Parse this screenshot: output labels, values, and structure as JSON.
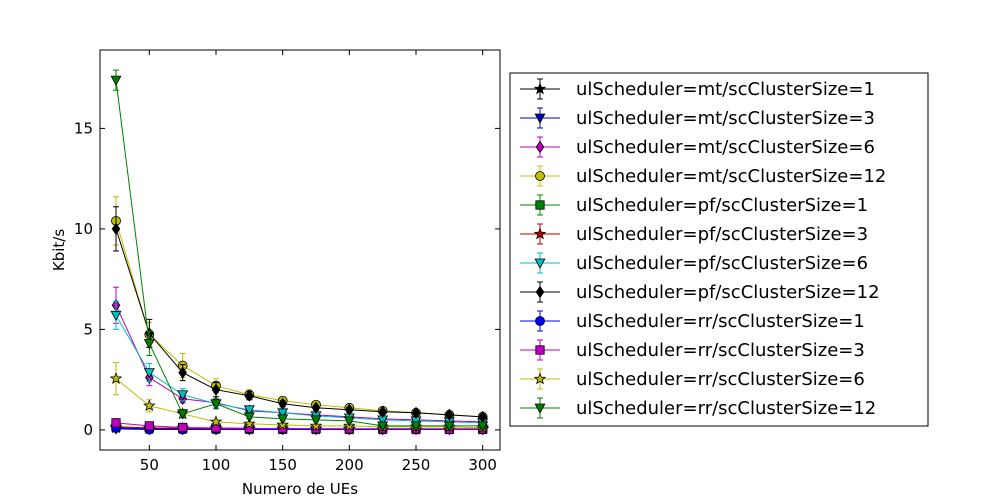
{
  "chart_data": {
    "type": "line",
    "xlabel": "Numero de UEs",
    "ylabel": "Kbit/s",
    "xlim": [
      13,
      313
    ],
    "ylim": [
      -1,
      18.9
    ],
    "x_ticks": [
      50,
      100,
      150,
      200,
      250,
      300
    ],
    "y_ticks": [
      0,
      5,
      10,
      15
    ],
    "grid": false,
    "legend_position": "outside-right",
    "x": [
      25,
      50,
      75,
      100,
      125,
      150,
      175,
      200,
      225,
      250,
      275,
      300
    ],
    "series": [
      {
        "name": "ulScheduler=mt/scClusterSize=1",
        "color": "#000000",
        "marker": "star",
        "values": [
          0.1,
          0.05,
          0.05,
          0.05,
          0.04,
          0.04,
          0.04,
          0.03,
          0.03,
          0.03,
          0.03,
          0.03
        ],
        "errors": [
          0.05,
          0.03,
          0.02,
          0.02,
          0.02,
          0.02,
          0.02,
          0.02,
          0.02,
          0.02,
          0.02,
          0.02
        ]
      },
      {
        "name": "ulScheduler=mt/scClusterSize=3",
        "color": "#0000bf",
        "marker": "triangle-down",
        "values": [
          0.05,
          0.02,
          0.02,
          0.02,
          0.02,
          0.02,
          0.02,
          0.02,
          0.02,
          0.02,
          0.02,
          0.02
        ],
        "errors": [
          0.03,
          0.02,
          0.02,
          0.02,
          0.02,
          0.02,
          0.02,
          0.02,
          0.02,
          0.02,
          0.02,
          0.02
        ]
      },
      {
        "name": "ulScheduler=mt/scClusterSize=6",
        "color": "#bf00bf",
        "marker": "diamond",
        "values": [
          6.2,
          2.6,
          1.55,
          1.35,
          0.95,
          0.85,
          0.75,
          0.65,
          0.55,
          0.5,
          0.45,
          0.4
        ],
        "errors": [
          0.9,
          0.4,
          0.2,
          0.15,
          0.1,
          0.1,
          0.1,
          0.08,
          0.08,
          0.08,
          0.08,
          0.08
        ]
      },
      {
        "name": "ulScheduler=mt/scClusterSize=12",
        "color": "#bfbf00",
        "marker": "circle",
        "values": [
          10.4,
          4.75,
          3.2,
          2.2,
          1.75,
          1.45,
          1.25,
          1.1,
          0.95,
          0.85,
          0.75,
          0.65
        ],
        "errors": [
          1.2,
          0.6,
          0.6,
          0.35,
          0.25,
          0.2,
          0.15,
          0.15,
          0.15,
          0.12,
          0.12,
          0.12
        ]
      },
      {
        "name": "ulScheduler=pf/scClusterSize=1",
        "color": "#008000",
        "marker": "square",
        "values": [
          0.15,
          0.1,
          0.08,
          0.07,
          0.06,
          0.05,
          0.05,
          0.05,
          0.05,
          0.05,
          0.05,
          0.05
        ],
        "errors": [
          0.05,
          0.03,
          0.02,
          0.02,
          0.02,
          0.02,
          0.02,
          0.02,
          0.02,
          0.02,
          0.02,
          0.02
        ]
      },
      {
        "name": "ulScheduler=pf/scClusterSize=3",
        "color": "#bf0000",
        "marker": "star",
        "values": [
          0.15,
          0.1,
          0.08,
          0.07,
          0.06,
          0.05,
          0.05,
          0.05,
          0.05,
          0.05,
          0.05,
          0.05
        ],
        "errors": [
          0.05,
          0.03,
          0.02,
          0.02,
          0.02,
          0.02,
          0.02,
          0.02,
          0.02,
          0.02,
          0.02,
          0.02
        ]
      },
      {
        "name": "ulScheduler=pf/scClusterSize=6",
        "color": "#00bfbf",
        "marker": "triangle-down",
        "values": [
          5.7,
          2.85,
          1.75,
          1.3,
          1.0,
          0.85,
          0.7,
          0.6,
          0.5,
          0.45,
          0.4,
          0.35
        ],
        "errors": [
          0.7,
          0.45,
          0.3,
          0.2,
          0.12,
          0.1,
          0.1,
          0.08,
          0.08,
          0.08,
          0.08,
          0.08
        ]
      },
      {
        "name": "ulScheduler=pf/scClusterSize=12",
        "color": "#000000",
        "marker": "diamond",
        "values": [
          10.0,
          4.8,
          2.85,
          2.0,
          1.7,
          1.3,
          1.1,
          1.0,
          0.9,
          0.85,
          0.75,
          0.65
        ],
        "errors": [
          1.1,
          0.7,
          0.4,
          0.35,
          0.2,
          0.15,
          0.12,
          0.12,
          0.1,
          0.1,
          0.1,
          0.1
        ]
      },
      {
        "name": "ulScheduler=rr/scClusterSize=1",
        "color": "#0000ff",
        "marker": "circle",
        "values": [
          0.1,
          0.02,
          0.02,
          0.02,
          0.02,
          0.02,
          0.02,
          0.02,
          0.02,
          0.02,
          0.02,
          0.02
        ],
        "errors": [
          0.05,
          0.02,
          0.02,
          0.02,
          0.02,
          0.02,
          0.02,
          0.02,
          0.02,
          0.02,
          0.02,
          0.02
        ]
      },
      {
        "name": "ulScheduler=rr/scClusterSize=3",
        "color": "#bf00bf",
        "marker": "square",
        "values": [
          0.35,
          0.2,
          0.12,
          0.1,
          0.08,
          0.07,
          0.06,
          0.05,
          0.05,
          0.05,
          0.04,
          0.04
        ],
        "errors": [
          0.2,
          0.08,
          0.05,
          0.04,
          0.03,
          0.03,
          0.03,
          0.03,
          0.03,
          0.03,
          0.03,
          0.03
        ]
      },
      {
        "name": "ulScheduler=rr/scClusterSize=6",
        "color": "#bfbf00",
        "marker": "star",
        "values": [
          2.55,
          1.2,
          0.8,
          0.4,
          0.3,
          0.25,
          0.2,
          0.2,
          0.15,
          0.15,
          0.15,
          0.1
        ],
        "errors": [
          0.8,
          0.3,
          0.2,
          0.1,
          0.08,
          0.08,
          0.06,
          0.06,
          0.05,
          0.05,
          0.05,
          0.05
        ]
      },
      {
        "name": "ulScheduler=rr/scClusterSize=12",
        "color": "#008000",
        "marker": "triangle-down",
        "values": [
          17.4,
          4.3,
          0.8,
          1.3,
          0.65,
          0.55,
          0.5,
          0.45,
          0.2,
          0.2,
          0.2,
          0.2
        ],
        "errors": [
          0.5,
          0.6,
          0.2,
          0.25,
          0.1,
          0.1,
          0.08,
          0.08,
          0.06,
          0.06,
          0.06,
          0.06
        ]
      }
    ]
  }
}
